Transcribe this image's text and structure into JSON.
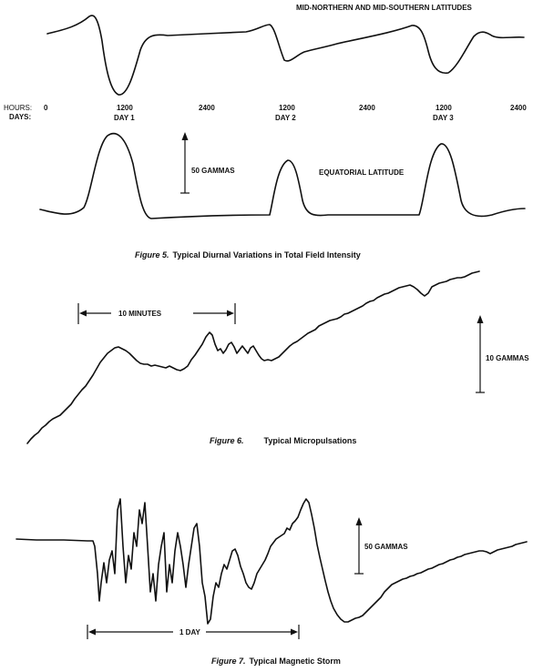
{
  "figure5": {
    "label_top_curve": "MID-NORTHERN AND MID-SOUTHERN LATITUDES",
    "hours_label": "HOURS:",
    "days_label": "DAYS:",
    "hour_ticks": [
      "0",
      "1200",
      "2400",
      "1200",
      "2400",
      "1200",
      "2400"
    ],
    "day_ticks": [
      "DAY 1",
      "DAY 2",
      "DAY 3"
    ],
    "scale_label": "50 GAMMAS",
    "label_bottom_curve": "EQUATORIAL  LATITUDE",
    "caption_prefix": "Figure 5.",
    "caption_text": "Typical Diurnal Variations in Total Field Intensity"
  },
  "figure6": {
    "interval_label": "10 MINUTES",
    "scale_label": "10 GAMMAS",
    "caption_prefix": "Figure 6.",
    "caption_text": "Typical Micropulsations"
  },
  "figure7": {
    "scale_label": "50 GAMMAS",
    "interval_label": "1 DAY",
    "caption_prefix": "Figure 7.",
    "caption_text": "Typical Magnetic Storm"
  }
}
